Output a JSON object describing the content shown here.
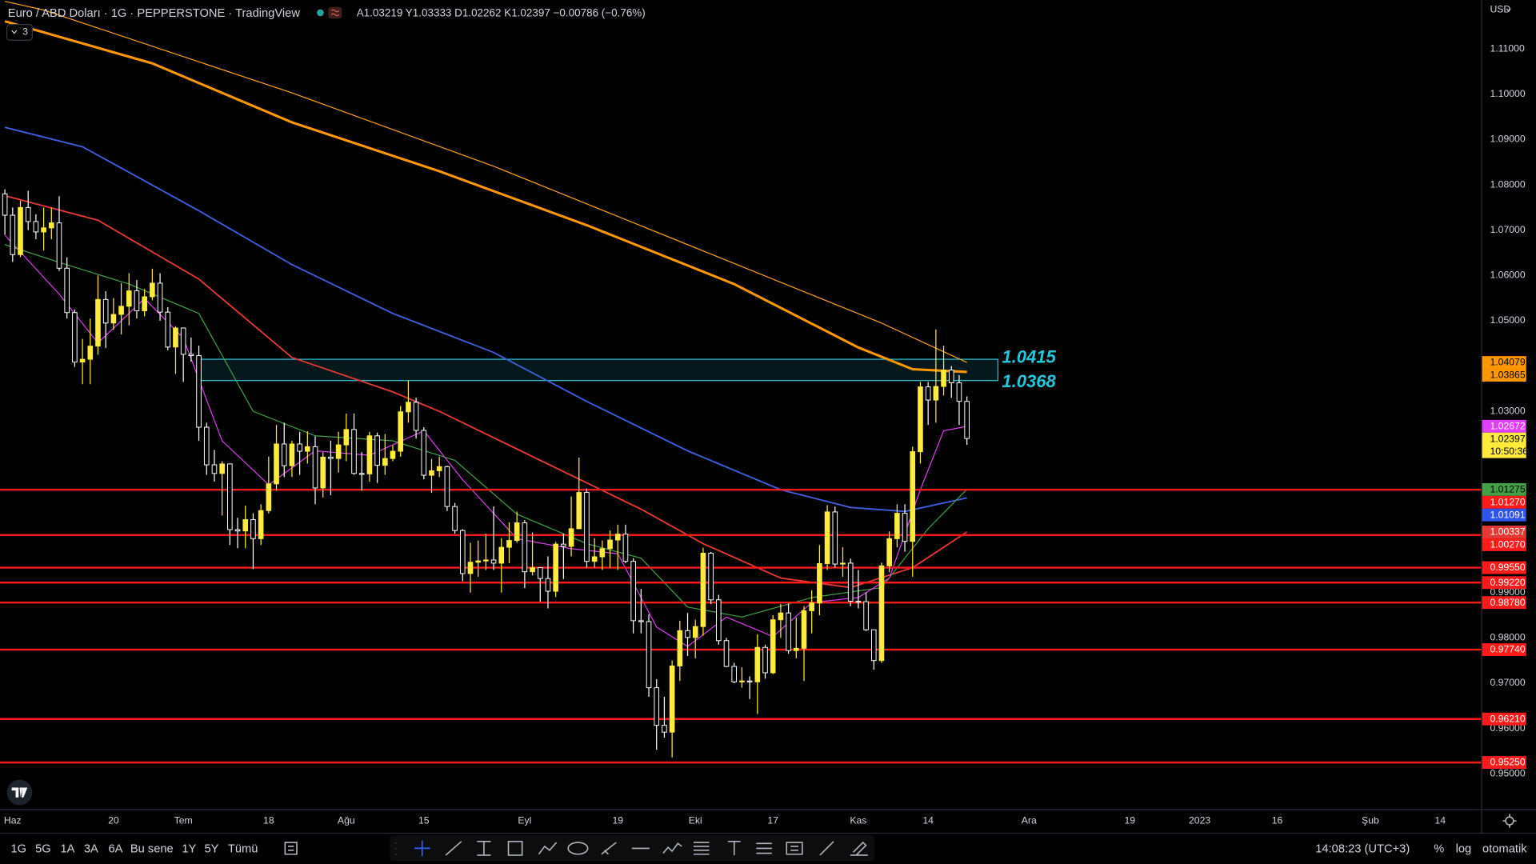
{
  "ui": {
    "legend_title": "Euro / ABD Doları · 1G · PEPPERSTONE · TradingView",
    "ohlc": "A1.03219 Y1.03333 D1.02262 K1.02397 −0.00786 (−0.76%)",
    "indicator_count": "3",
    "currency": "USD",
    "ranges": [
      "1G",
      "5G",
      "1A",
      "3A",
      "6A",
      "Bu sene",
      "1Y",
      "5Y",
      "Tümü"
    ],
    "clock": "14:08:23 (UTC+3)",
    "scale_options": [
      "%",
      "log",
      "otomatik"
    ]
  },
  "chart_data": {
    "type": "candlestick",
    "up_color": "#ffeb3b",
    "down_color": "#ffffff",
    "xlim": [
      -0.63,
      190.28
    ],
    "ylim": [
      0.9422,
      1.1208
    ],
    "xticks": [
      {
        "value": 1,
        "label": "Haz"
      },
      {
        "value": 14,
        "label": "20"
      },
      {
        "value": 23,
        "label": "Tem"
      },
      {
        "value": 34,
        "label": "18"
      },
      {
        "value": 44,
        "label": "Ağu"
      },
      {
        "value": 54,
        "label": "15"
      },
      {
        "value": 67,
        "label": "Eyl"
      },
      {
        "value": 79,
        "label": "19"
      },
      {
        "value": 89,
        "label": "Eki"
      },
      {
        "value": 99,
        "label": "17"
      },
      {
        "value": 110,
        "label": "Kas"
      },
      {
        "value": 119,
        "label": "14"
      },
      {
        "value": 132,
        "label": "Ara"
      },
      {
        "value": 145,
        "label": "19"
      },
      {
        "value": 154,
        "label": "2023"
      },
      {
        "value": 164,
        "label": "16"
      },
      {
        "value": 176,
        "label": "Şub"
      },
      {
        "value": 185,
        "label": "14"
      }
    ],
    "yticks": [
      {
        "value": 1.11,
        "label": "1.11000"
      },
      {
        "value": 1.1,
        "label": "1.10000"
      },
      {
        "value": 1.09,
        "label": "1.09000"
      },
      {
        "value": 1.08,
        "label": "1.08000"
      },
      {
        "value": 1.07,
        "label": "1.07000"
      },
      {
        "value": 1.06,
        "label": "1.06000"
      },
      {
        "value": 1.05,
        "label": "1.05000"
      },
      {
        "value": 1.03,
        "label": "1.03000"
      },
      {
        "value": 0.99,
        "label": "0.99000"
      },
      {
        "value": 0.98,
        "label": "0.98000"
      },
      {
        "value": 0.97,
        "label": "0.97000"
      },
      {
        "value": 0.96,
        "label": "0.96000"
      },
      {
        "value": 0.95,
        "label": "0.95000"
      }
    ],
    "candles": [
      [
        1.078,
        1.079,
        1.069,
        1.0733
      ],
      [
        1.0733,
        1.075,
        1.063,
        1.0646
      ],
      [
        1.0646,
        1.0765,
        1.064,
        1.075
      ],
      [
        1.075,
        1.0787,
        1.07,
        1.0719
      ],
      [
        1.0719,
        1.0735,
        1.068,
        1.0696
      ],
      [
        1.0696,
        1.075,
        1.0655,
        1.0705
      ],
      [
        1.0705,
        1.075,
        1.068,
        1.0716
      ],
      [
        1.0716,
        1.0775,
        1.061,
        1.0616
      ],
      [
        1.0616,
        1.064,
        1.0505,
        1.0518
      ],
      [
        1.0518,
        1.0525,
        1.0398,
        1.0409
      ],
      [
        1.0409,
        1.046,
        1.036,
        1.0415
      ],
      [
        1.0415,
        1.0505,
        1.036,
        1.0444
      ],
      [
        1.0444,
        1.06,
        1.0425,
        1.0547
      ],
      [
        1.0547,
        1.0565,
        1.044,
        1.0495
      ],
      [
        1.0495,
        1.055,
        1.048,
        1.0514
      ],
      [
        1.0514,
        1.0583,
        1.047,
        1.0532
      ],
      [
        1.0532,
        1.0605,
        1.049,
        1.0566
      ],
      [
        1.0566,
        1.059,
        1.0505,
        1.0522
      ],
      [
        1.0522,
        1.057,
        1.051,
        1.0553
      ],
      [
        1.0553,
        1.0615,
        1.0545,
        1.0583
      ],
      [
        1.0583,
        1.0605,
        1.05,
        1.0519
      ],
      [
        1.0519,
        1.053,
        1.0435,
        1.0442
      ],
      [
        1.0442,
        1.0488,
        1.0383,
        1.0484
      ],
      [
        1.0484,
        1.0485,
        1.0365,
        1.0426
      ],
      [
        1.0426,
        1.0463,
        1.041,
        1.0423
      ],
      [
        1.0423,
        1.0445,
        1.0235,
        1.0265
      ],
      [
        1.0265,
        1.0275,
        1.016,
        1.0182
      ],
      [
        1.0182,
        1.0215,
        1.0145,
        1.0163
      ],
      [
        1.0163,
        1.019,
        1.007,
        1.0184
      ],
      [
        1.0184,
        1.0185,
        1.0005,
        1.0039
      ],
      [
        1.0039,
        1.0065,
        0.9998,
        1.0036
      ],
      [
        1.0036,
        1.0092,
        0.9998,
        1.0061
      ],
      [
        1.0061,
        1.0075,
        0.9952,
        1.0019
      ],
      [
        1.0019,
        1.0095,
        1.0005,
        1.0081
      ],
      [
        1.0081,
        1.02,
        1.0075,
        1.014
      ],
      [
        1.014,
        1.027,
        1.0125,
        1.0228
      ],
      [
        1.0228,
        1.0275,
        1.0155,
        1.018
      ],
      [
        1.018,
        1.0235,
        1.0155,
        1.0228
      ],
      [
        1.0228,
        1.0255,
        1.016,
        1.0212
      ],
      [
        1.0212,
        1.0256,
        1.0185,
        1.0222
      ],
      [
        1.0222,
        1.0245,
        1.0095,
        1.0131
      ],
      [
        1.0131,
        1.021,
        1.011,
        1.0199
      ],
      [
        1.0199,
        1.0235,
        1.0115,
        1.0196
      ],
      [
        1.0196,
        1.0255,
        1.0165,
        1.0226
      ],
      [
        1.0226,
        1.0295,
        1.019,
        1.026
      ],
      [
        1.026,
        1.0295,
        1.016,
        1.0163
      ],
      [
        1.0163,
        1.021,
        1.0125,
        1.0162
      ],
      [
        1.0162,
        1.0255,
        1.0145,
        1.0246
      ],
      [
        1.0246,
        1.0253,
        1.0142,
        1.0181
      ],
      [
        1.0181,
        1.025,
        1.016,
        1.0196
      ],
      [
        1.0196,
        1.0225,
        1.019,
        1.0212
      ],
      [
        1.0212,
        1.0312,
        1.02,
        1.0299
      ],
      [
        1.0299,
        1.0368,
        1.0275,
        1.032
      ],
      [
        1.032,
        1.033,
        1.024,
        1.0258
      ],
      [
        1.0258,
        1.0265,
        1.015,
        1.0159
      ],
      [
        1.0159,
        1.0195,
        1.012,
        1.0169
      ],
      [
        1.0169,
        1.02,
        1.0155,
        1.0178
      ],
      [
        1.0178,
        1.018,
        1.008,
        1.009
      ],
      [
        1.009,
        1.0098,
        1.003,
        1.0037
      ],
      [
        1.0037,
        1.004,
        0.9925,
        0.9942
      ],
      [
        0.9942,
        1.001,
        0.99,
        0.9967
      ],
      [
        0.9967,
        1.0015,
        0.9935,
        0.997
      ],
      [
        0.997,
        1.003,
        0.995,
        0.9972
      ],
      [
        0.9972,
        1.009,
        0.995,
        0.9965
      ],
      [
        0.9965,
        1.002,
        0.99,
        1.0
      ],
      [
        1.0,
        1.0055,
        0.9965,
        1.0015
      ],
      [
        1.0015,
        1.0079,
        1.001,
        1.0054
      ],
      [
        1.0054,
        1.006,
        0.991,
        0.9946
      ],
      [
        0.9946,
        1.0033,
        0.9938,
        0.9955
      ],
      [
        0.9955,
        0.9948,
        0.988,
        0.9931
      ],
      [
        0.9931,
        0.998,
        0.9865,
        0.9903
      ],
      [
        0.9903,
        1.0012,
        0.989,
        1.0007
      ],
      [
        1.0007,
        1.003,
        0.993,
        1.0002
      ],
      [
        1.0002,
        1.0112,
        0.998,
        1.0041
      ],
      [
        1.0041,
        1.0198,
        1.004,
        1.0121
      ],
      [
        1.0121,
        1.013,
        0.9955,
        0.9969
      ],
      [
        0.9969,
        1.002,
        0.9955,
        0.9979
      ],
      [
        0.9979,
        1.0015,
        0.995,
        0.9997
      ],
      [
        0.9997,
        1.0037,
        0.9955,
        1.0016
      ],
      [
        1.0016,
        1.005,
        0.995,
        1.0029
      ],
      [
        1.0029,
        1.005,
        0.9965,
        0.9969
      ],
      [
        0.9969,
        0.9976,
        0.981,
        0.9838
      ],
      [
        0.9838,
        0.9908,
        0.981,
        0.9836
      ],
      [
        0.9836,
        0.9852,
        0.967,
        0.969
      ],
      [
        0.969,
        0.9709,
        0.9553,
        0.9607
      ],
      [
        0.9607,
        0.967,
        0.958,
        0.9592
      ],
      [
        0.9592,
        0.975,
        0.9536,
        0.9738
      ],
      [
        0.9738,
        0.9838,
        0.9705,
        0.9816
      ],
      [
        0.9816,
        0.9855,
        0.976,
        0.9801
      ],
      [
        0.9801,
        0.984,
        0.9755,
        0.9825
      ],
      [
        0.9825,
        0.9999,
        0.9805,
        0.9987
      ],
      [
        0.9987,
        0.999,
        0.9875,
        0.9884
      ],
      [
        0.9884,
        0.9895,
        0.9785,
        0.9794
      ],
      [
        0.9794,
        0.98,
        0.9735,
        0.9737
      ],
      [
        0.9737,
        0.9745,
        0.97,
        0.9703
      ],
      [
        0.9703,
        0.9735,
        0.969,
        0.9705
      ],
      [
        0.9705,
        0.9715,
        0.9665,
        0.9703
      ],
      [
        0.9703,
        0.9808,
        0.9632,
        0.9779
      ],
      [
        0.9779,
        0.9785,
        0.971,
        0.9723
      ],
      [
        0.9723,
        0.985,
        0.972,
        0.984
      ],
      [
        0.984,
        0.9875,
        0.98,
        0.9855
      ],
      [
        0.9855,
        0.9875,
        0.9765,
        0.9772
      ],
      [
        0.9772,
        0.9845,
        0.9755,
        0.9777
      ],
      [
        0.9777,
        0.987,
        0.9705,
        0.986
      ],
      [
        0.986,
        0.9905,
        0.981,
        0.9877
      ],
      [
        0.9877,
        1.0005,
        0.985,
        0.9964
      ],
      [
        0.9964,
        1.0093,
        0.995,
        1.0078
      ],
      [
        1.0078,
        1.009,
        0.9955,
        0.9963
      ],
      [
        0.9963,
        1.0,
        0.9935,
        0.9965
      ],
      [
        0.9965,
        0.9975,
        0.987,
        0.9881
      ],
      [
        0.9881,
        0.995,
        0.9865,
        0.988
      ],
      [
        0.988,
        0.99,
        0.9815,
        0.9818
      ],
      [
        0.9818,
        0.9818,
        0.973,
        0.975
      ],
      [
        0.975,
        0.9966,
        0.9745,
        0.9959
      ],
      [
        0.9959,
        1.0035,
        0.9945,
        1.0019
      ],
      [
        1.0019,
        1.0095,
        1.0,
        1.0075
      ],
      [
        1.0075,
        1.0095,
        0.999,
        1.0013
      ],
      [
        1.0013,
        1.0222,
        0.9935,
        1.0211
      ],
      [
        1.0211,
        1.0365,
        1.0185,
        1.0354
      ],
      [
        1.0354,
        1.0365,
        1.027,
        1.0325
      ],
      [
        1.0325,
        1.0481,
        1.0275,
        1.0355
      ],
      [
        1.0355,
        1.0445,
        1.0335,
        1.0391
      ],
      [
        1.0391,
        1.04,
        1.033,
        1.0363
      ],
      [
        1.0363,
        1.038,
        1.027,
        1.0322
      ],
      [
        1.0322,
        1.0333,
        1.0226,
        1.024
      ]
    ],
    "mas": [
      {
        "color": "#f7a21b",
        "width": 1,
        "x": [
          0,
          5,
          37,
          63,
          88,
          113,
          124
        ],
        "values": [
          1.1205,
          1.1186,
          1.1003,
          1.0841,
          1.0668,
          1.0495,
          1.0408
        ]
      },
      {
        "color": "#ff9800",
        "width": 2.5,
        "x": [
          0,
          19,
          37,
          56,
          75,
          94,
          110,
          117,
          124
        ],
        "values": [
          1.1161,
          1.1068,
          1.0938,
          1.083,
          1.0711,
          1.0581,
          1.0441,
          1.0393,
          1.0387
        ]
      },
      {
        "color": "#3f5fe0",
        "width": 1.5,
        "x": [
          0,
          10,
          25,
          37,
          50,
          63,
          75,
          88,
          100,
          109,
          116,
          124
        ],
        "values": [
          1.0927,
          1.0884,
          1.0743,
          1.0624,
          1.0516,
          1.043,
          1.0322,
          1.0213,
          1.0127,
          1.0088,
          1.0079,
          1.0109
        ]
      },
      {
        "color": "#e53935",
        "width": 1.5,
        "x": [
          0,
          12,
          25,
          37,
          50,
          56,
          69,
          82,
          90,
          100,
          109,
          117,
          124
        ],
        "values": [
          1.0776,
          1.0722,
          1.0592,
          1.0419,
          1.0343,
          1.03,
          1.0192,
          1.0084,
          1.0008,
          0.9932,
          0.9911,
          0.9955,
          1.0034
        ]
      },
      {
        "color": "#43a047",
        "width": 1,
        "x": [
          0,
          7,
          16,
          25,
          32,
          40,
          50,
          58,
          66,
          75,
          82,
          88,
          95,
          104,
          113,
          119,
          124
        ],
        "values": [
          1.0668,
          1.0629,
          1.0581,
          1.0516,
          1.03,
          1.0246,
          1.0235,
          1.0192,
          1.0073,
          1.0008,
          0.9976,
          0.9868,
          0.9846,
          0.9889,
          0.9911,
          1.0041,
          1.0128
        ]
      },
      {
        "color": "#d63fe8",
        "width": 1,
        "x": [
          0,
          7,
          12,
          18,
          23,
          28,
          34,
          40,
          47,
          54,
          59,
          66,
          73,
          79,
          84,
          88,
          93,
          99,
          104,
          110,
          114,
          118,
          121,
          124
        ],
        "values": [
          1.0689,
          1.0559,
          1.0451,
          1.0549,
          1.0462,
          1.0235,
          1.0138,
          1.0213,
          1.0203,
          1.0257,
          1.0149,
          1.0019,
          0.9997,
          0.9986,
          0.9824,
          0.9781,
          0.9846,
          0.9803,
          0.9878,
          0.9889,
          0.9932,
          1.0127,
          1.0257,
          1.0267
        ]
      }
    ],
    "zone": {
      "values": [
        1.0415,
        1.0368
      ],
      "x": [
        25,
        128
      ],
      "color": "#26c6da"
    },
    "level_color": "#ff1a1a",
    "levels": [
      {
        "value": 1.0127,
        "label": "1.01270"
      },
      {
        "value": 1.0027,
        "label": "1.00270"
      },
      {
        "value": 0.9955,
        "label": "0.99550"
      },
      {
        "value": 0.9922,
        "label": "0.99220"
      },
      {
        "value": 0.9878,
        "label": "0.98780"
      },
      {
        "value": 0.9774,
        "label": "0.97740"
      },
      {
        "value": 0.9621,
        "label": "0.96210"
      },
      {
        "value": 0.9525,
        "label": "0.95250"
      }
    ],
    "axis_badges": [
      {
        "value": 1.04079,
        "color": "#ff9800"
      },
      {
        "value": 1.03865,
        "color": "#ff9800"
      },
      {
        "value": 1.02672,
        "color": "#e040fb"
      },
      {
        "value": 1.01275,
        "color": "#43a047"
      },
      {
        "value": 1.01091,
        "color": "#2f54eb"
      },
      {
        "value": 1.00337,
        "color": "#e53935"
      }
    ],
    "last_price": {
      "value": 1.02397,
      "countdown": "10:50:36",
      "color": "#ffeb3b"
    }
  }
}
